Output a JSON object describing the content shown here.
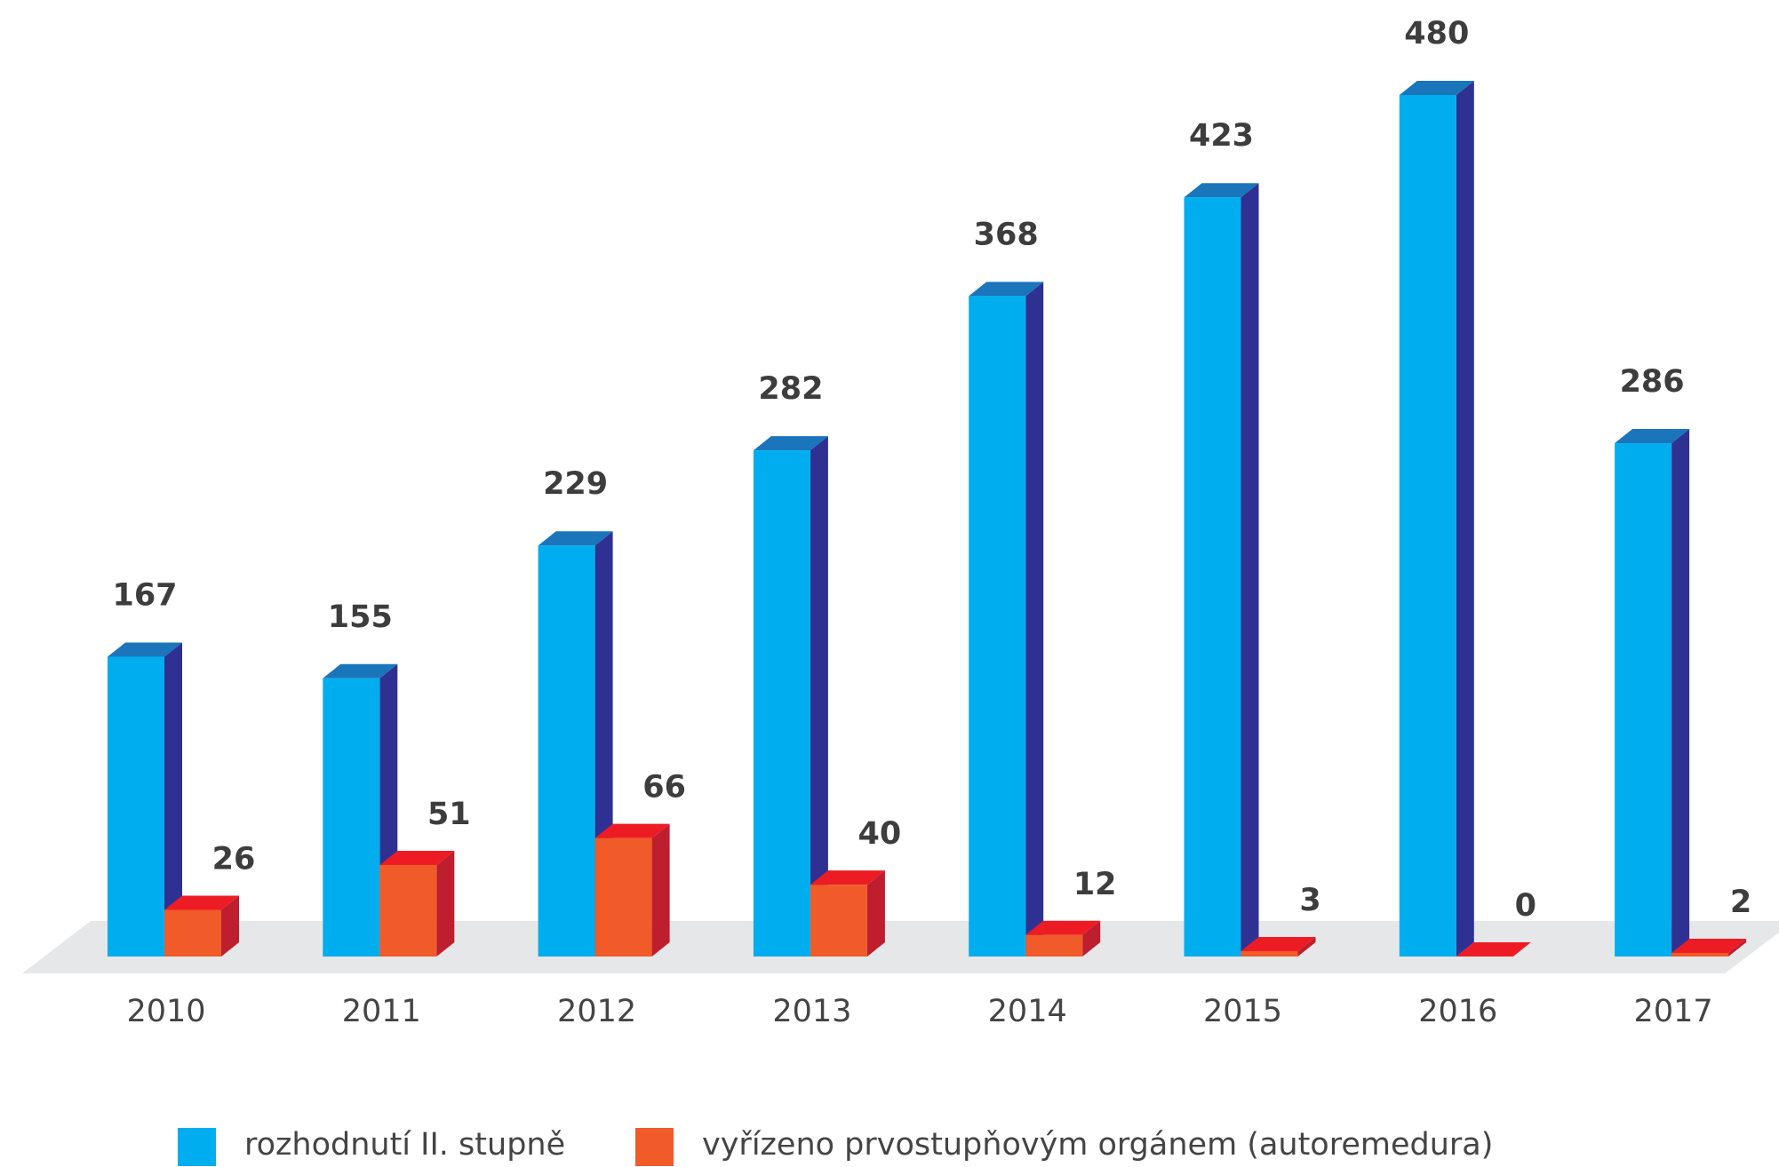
{
  "chart_data": {
    "type": "bar3d",
    "categories": [
      "2010",
      "2011",
      "2012",
      "2013",
      "2014",
      "2015",
      "2016",
      "2017"
    ],
    "series": [
      {
        "name": "rozhodnutí II. stupně",
        "color": "#00aeef",
        "values": [
          167,
          155,
          229,
          282,
          368,
          423,
          480,
          286
        ]
      },
      {
        "name": "vyřízeno prvostupňovým orgánem (autoremedura)",
        "color": "#f15a29",
        "values": [
          26,
          51,
          66,
          40,
          12,
          3,
          0,
          2
        ]
      }
    ],
    "legend": "bottom"
  }
}
